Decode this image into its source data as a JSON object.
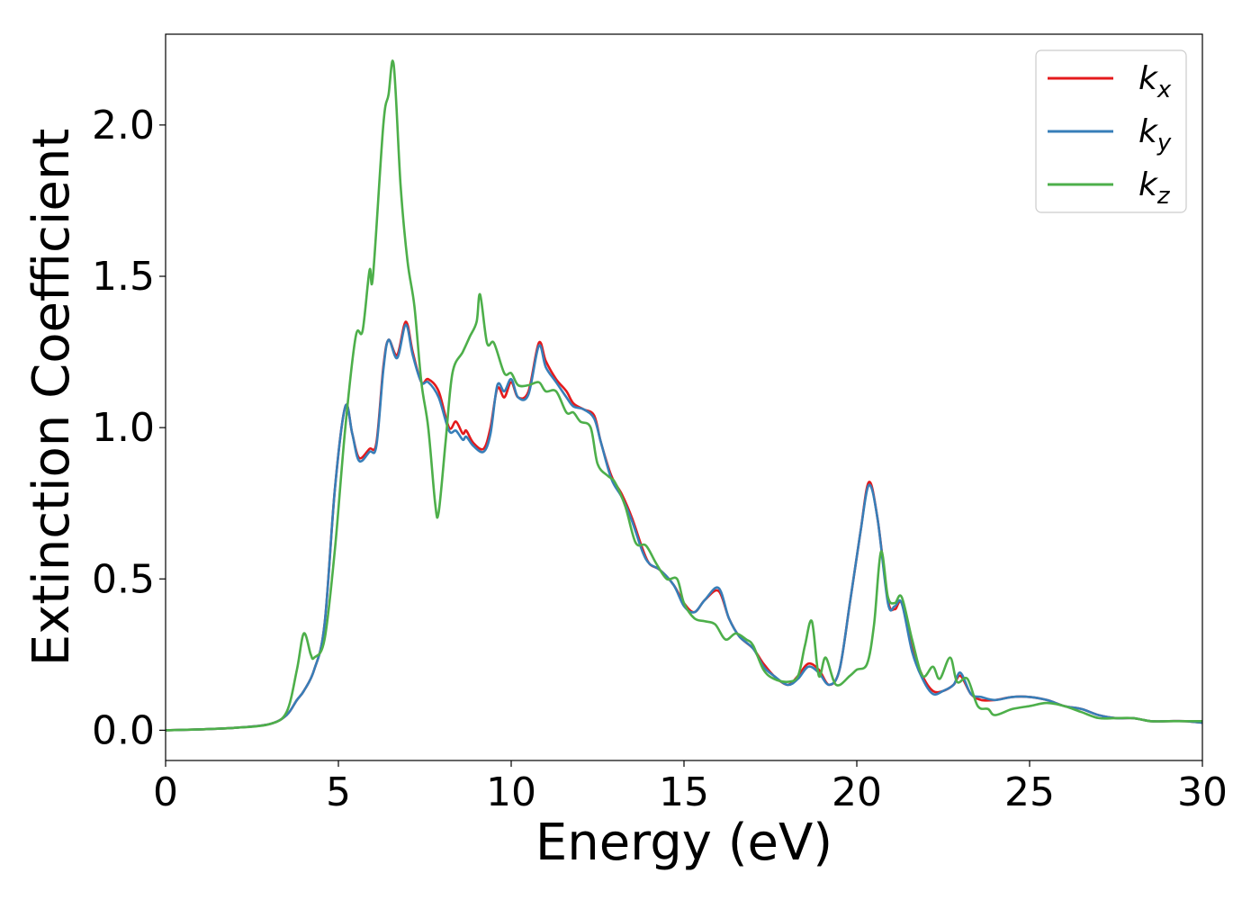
{
  "chart_data": {
    "type": "line",
    "title": "",
    "xlabel": "Energy (eV)",
    "ylabel": "Extinction Coefficient",
    "xlim": [
      0,
      30
    ],
    "ylim": [
      -0.1,
      2.3
    ],
    "x_ticks": [
      0,
      5,
      10,
      15,
      20,
      25,
      30
    ],
    "x_tick_labels": [
      "0",
      "5",
      "10",
      "15",
      "20",
      "25",
      "30"
    ],
    "y_ticks": [
      0.0,
      0.5,
      1.0,
      1.5,
      2.0
    ],
    "y_tick_labels": [
      "0.0",
      "0.5",
      "1.0",
      "1.5",
      "2.0"
    ],
    "grid": false,
    "legend_position": "top-right",
    "series": [
      {
        "name": "k_x",
        "label_main": "k",
        "label_sub": "x",
        "color": "#e41a1c",
        "points": [
          [
            0,
            0.0
          ],
          [
            1,
            0.003
          ],
          [
            2,
            0.008
          ],
          [
            3,
            0.02
          ],
          [
            3.5,
            0.05
          ],
          [
            3.8,
            0.1
          ],
          [
            4.0,
            0.13
          ],
          [
            4.3,
            0.2
          ],
          [
            4.6,
            0.35
          ],
          [
            4.9,
            0.8
          ],
          [
            5.2,
            1.07
          ],
          [
            5.4,
            0.98
          ],
          [
            5.6,
            0.9
          ],
          [
            5.9,
            0.93
          ],
          [
            6.1,
            0.95
          ],
          [
            6.3,
            1.2
          ],
          [
            6.45,
            1.29
          ],
          [
            6.7,
            1.24
          ],
          [
            6.95,
            1.35
          ],
          [
            7.15,
            1.25
          ],
          [
            7.4,
            1.15
          ],
          [
            7.6,
            1.16
          ],
          [
            7.9,
            1.12
          ],
          [
            8.2,
            1.0
          ],
          [
            8.4,
            1.02
          ],
          [
            8.6,
            0.98
          ],
          [
            8.7,
            0.99
          ],
          [
            8.9,
            0.95
          ],
          [
            9.2,
            0.93
          ],
          [
            9.4,
            1.0
          ],
          [
            9.6,
            1.13
          ],
          [
            9.8,
            1.1
          ],
          [
            10.0,
            1.15
          ],
          [
            10.2,
            1.1
          ],
          [
            10.5,
            1.12
          ],
          [
            10.8,
            1.28
          ],
          [
            11.0,
            1.22
          ],
          [
            11.3,
            1.16
          ],
          [
            11.6,
            1.12
          ],
          [
            11.8,
            1.08
          ],
          [
            12.1,
            1.06
          ],
          [
            12.4,
            1.04
          ],
          [
            12.6,
            0.95
          ],
          [
            12.9,
            0.84
          ],
          [
            13.2,
            0.78
          ],
          [
            13.5,
            0.7
          ],
          [
            13.8,
            0.6
          ],
          [
            14.0,
            0.55
          ],
          [
            14.3,
            0.53
          ],
          [
            14.7,
            0.48
          ],
          [
            15.0,
            0.42
          ],
          [
            15.3,
            0.39
          ],
          [
            15.6,
            0.43
          ],
          [
            16.0,
            0.46
          ],
          [
            16.3,
            0.37
          ],
          [
            16.6,
            0.31
          ],
          [
            17.0,
            0.27
          ],
          [
            17.3,
            0.22
          ],
          [
            17.6,
            0.18
          ],
          [
            18.0,
            0.15
          ],
          [
            18.3,
            0.18
          ],
          [
            18.6,
            0.22
          ],
          [
            18.9,
            0.2
          ],
          [
            19.2,
            0.15
          ],
          [
            19.5,
            0.2
          ],
          [
            19.8,
            0.42
          ],
          [
            20.1,
            0.65
          ],
          [
            20.35,
            0.82
          ],
          [
            20.6,
            0.7
          ],
          [
            20.9,
            0.43
          ],
          [
            21.1,
            0.4
          ],
          [
            21.3,
            0.42
          ],
          [
            21.6,
            0.27
          ],
          [
            21.9,
            0.18
          ],
          [
            22.2,
            0.13
          ],
          [
            22.5,
            0.13
          ],
          [
            22.8,
            0.15
          ],
          [
            23.0,
            0.18
          ],
          [
            23.3,
            0.12
          ],
          [
            23.6,
            0.1
          ],
          [
            24.0,
            0.1
          ],
          [
            24.5,
            0.11
          ],
          [
            25.0,
            0.11
          ],
          [
            25.5,
            0.1
          ],
          [
            26.0,
            0.08
          ],
          [
            26.5,
            0.07
          ],
          [
            27.0,
            0.05
          ],
          [
            27.5,
            0.04
          ],
          [
            28.0,
            0.04
          ],
          [
            28.5,
            0.03
          ],
          [
            29.0,
            0.03
          ],
          [
            29.5,
            0.03
          ],
          [
            30.0,
            0.025
          ]
        ]
      },
      {
        "name": "k_y",
        "label_main": "k",
        "label_sub": "y",
        "color": "#377eb8",
        "points": [
          [
            0,
            0.0
          ],
          [
            1,
            0.003
          ],
          [
            2,
            0.008
          ],
          [
            3,
            0.02
          ],
          [
            3.5,
            0.05
          ],
          [
            3.8,
            0.1
          ],
          [
            4.0,
            0.13
          ],
          [
            4.3,
            0.2
          ],
          [
            4.6,
            0.35
          ],
          [
            4.9,
            0.8
          ],
          [
            5.2,
            1.07
          ],
          [
            5.4,
            0.98
          ],
          [
            5.6,
            0.89
          ],
          [
            5.9,
            0.92
          ],
          [
            6.1,
            0.94
          ],
          [
            6.3,
            1.19
          ],
          [
            6.45,
            1.29
          ],
          [
            6.7,
            1.23
          ],
          [
            6.95,
            1.34
          ],
          [
            7.15,
            1.24
          ],
          [
            7.4,
            1.15
          ],
          [
            7.6,
            1.15
          ],
          [
            7.9,
            1.1
          ],
          [
            8.2,
            0.99
          ],
          [
            8.4,
            0.99
          ],
          [
            8.6,
            0.96
          ],
          [
            8.7,
            0.97
          ],
          [
            8.9,
            0.94
          ],
          [
            9.2,
            0.92
          ],
          [
            9.4,
            0.98
          ],
          [
            9.6,
            1.14
          ],
          [
            9.8,
            1.12
          ],
          [
            10.0,
            1.16
          ],
          [
            10.2,
            1.1
          ],
          [
            10.5,
            1.11
          ],
          [
            10.8,
            1.27
          ],
          [
            11.0,
            1.2
          ],
          [
            11.3,
            1.15
          ],
          [
            11.6,
            1.1
          ],
          [
            11.8,
            1.07
          ],
          [
            12.1,
            1.06
          ],
          [
            12.4,
            1.03
          ],
          [
            12.6,
            0.95
          ],
          [
            12.9,
            0.83
          ],
          [
            13.2,
            0.77
          ],
          [
            13.5,
            0.69
          ],
          [
            13.8,
            0.59
          ],
          [
            14.0,
            0.55
          ],
          [
            14.3,
            0.53
          ],
          [
            14.7,
            0.48
          ],
          [
            15.0,
            0.41
          ],
          [
            15.3,
            0.39
          ],
          [
            15.6,
            0.43
          ],
          [
            16.0,
            0.47
          ],
          [
            16.3,
            0.37
          ],
          [
            16.6,
            0.31
          ],
          [
            17.0,
            0.27
          ],
          [
            17.3,
            0.21
          ],
          [
            17.6,
            0.18
          ],
          [
            18.0,
            0.15
          ],
          [
            18.3,
            0.17
          ],
          [
            18.6,
            0.21
          ],
          [
            18.9,
            0.19
          ],
          [
            19.2,
            0.15
          ],
          [
            19.5,
            0.2
          ],
          [
            19.8,
            0.42
          ],
          [
            20.1,
            0.65
          ],
          [
            20.35,
            0.81
          ],
          [
            20.6,
            0.7
          ],
          [
            20.9,
            0.42
          ],
          [
            21.1,
            0.41
          ],
          [
            21.3,
            0.42
          ],
          [
            21.6,
            0.26
          ],
          [
            21.9,
            0.17
          ],
          [
            22.2,
            0.12
          ],
          [
            22.5,
            0.13
          ],
          [
            22.8,
            0.15
          ],
          [
            23.0,
            0.19
          ],
          [
            23.3,
            0.12
          ],
          [
            23.6,
            0.11
          ],
          [
            24.0,
            0.1
          ],
          [
            24.5,
            0.11
          ],
          [
            25.0,
            0.11
          ],
          [
            25.5,
            0.1
          ],
          [
            26.0,
            0.08
          ],
          [
            26.5,
            0.07
          ],
          [
            27.0,
            0.05
          ],
          [
            27.5,
            0.04
          ],
          [
            28.0,
            0.04
          ],
          [
            28.5,
            0.03
          ],
          [
            29.0,
            0.03
          ],
          [
            29.5,
            0.03
          ],
          [
            30.0,
            0.025
          ]
        ]
      },
      {
        "name": "k_z",
        "label_main": "k",
        "label_sub": "z",
        "color": "#4daf4a",
        "points": [
          [
            0,
            0.0
          ],
          [
            1,
            0.003
          ],
          [
            2,
            0.008
          ],
          [
            3,
            0.02
          ],
          [
            3.5,
            0.06
          ],
          [
            3.8,
            0.2
          ],
          [
            4.0,
            0.32
          ],
          [
            4.2,
            0.25
          ],
          [
            4.3,
            0.24
          ],
          [
            4.6,
            0.3
          ],
          [
            4.9,
            0.6
          ],
          [
            5.2,
            1.0
          ],
          [
            5.5,
            1.3
          ],
          [
            5.7,
            1.32
          ],
          [
            5.9,
            1.52
          ],
          [
            6.0,
            1.5
          ],
          [
            6.3,
            2.0
          ],
          [
            6.45,
            2.1
          ],
          [
            6.6,
            2.2
          ],
          [
            6.8,
            1.8
          ],
          [
            7.0,
            1.55
          ],
          [
            7.2,
            1.4
          ],
          [
            7.4,
            1.15
          ],
          [
            7.6,
            1.0
          ],
          [
            7.8,
            0.75
          ],
          [
            7.9,
            0.72
          ],
          [
            8.1,
            0.95
          ],
          [
            8.3,
            1.18
          ],
          [
            8.6,
            1.25
          ],
          [
            8.8,
            1.3
          ],
          [
            9.0,
            1.35
          ],
          [
            9.1,
            1.44
          ],
          [
            9.3,
            1.28
          ],
          [
            9.5,
            1.28
          ],
          [
            9.8,
            1.18
          ],
          [
            10.0,
            1.18
          ],
          [
            10.2,
            1.14
          ],
          [
            10.5,
            1.14
          ],
          [
            10.8,
            1.15
          ],
          [
            11.0,
            1.12
          ],
          [
            11.3,
            1.12
          ],
          [
            11.6,
            1.05
          ],
          [
            11.8,
            1.05
          ],
          [
            12.0,
            1.02
          ],
          [
            12.3,
            1.0
          ],
          [
            12.5,
            0.88
          ],
          [
            12.8,
            0.84
          ],
          [
            13.0,
            0.82
          ],
          [
            13.3,
            0.74
          ],
          [
            13.6,
            0.62
          ],
          [
            13.9,
            0.61
          ],
          [
            14.2,
            0.55
          ],
          [
            14.5,
            0.5
          ],
          [
            14.8,
            0.5
          ],
          [
            15.0,
            0.42
          ],
          [
            15.3,
            0.37
          ],
          [
            15.6,
            0.36
          ],
          [
            15.9,
            0.35
          ],
          [
            16.2,
            0.3
          ],
          [
            16.5,
            0.32
          ],
          [
            16.8,
            0.3
          ],
          [
            17.0,
            0.28
          ],
          [
            17.3,
            0.2
          ],
          [
            17.6,
            0.17
          ],
          [
            18.0,
            0.16
          ],
          [
            18.3,
            0.18
          ],
          [
            18.5,
            0.28
          ],
          [
            18.7,
            0.36
          ],
          [
            18.9,
            0.18
          ],
          [
            19.1,
            0.24
          ],
          [
            19.4,
            0.15
          ],
          [
            19.8,
            0.18
          ],
          [
            20.0,
            0.2
          ],
          [
            20.3,
            0.22
          ],
          [
            20.5,
            0.35
          ],
          [
            20.7,
            0.59
          ],
          [
            20.9,
            0.44
          ],
          [
            21.1,
            0.42
          ],
          [
            21.3,
            0.44
          ],
          [
            21.6,
            0.3
          ],
          [
            21.9,
            0.18
          ],
          [
            22.2,
            0.21
          ],
          [
            22.4,
            0.17
          ],
          [
            22.7,
            0.24
          ],
          [
            22.9,
            0.16
          ],
          [
            23.2,
            0.17
          ],
          [
            23.5,
            0.08
          ],
          [
            23.8,
            0.07
          ],
          [
            24.0,
            0.05
          ],
          [
            24.5,
            0.07
          ],
          [
            25.0,
            0.08
          ],
          [
            25.5,
            0.09
          ],
          [
            26.0,
            0.08
          ],
          [
            26.5,
            0.06
          ],
          [
            27.0,
            0.04
          ],
          [
            27.5,
            0.04
          ],
          [
            28.0,
            0.04
          ],
          [
            28.5,
            0.03
          ],
          [
            29.0,
            0.03
          ],
          [
            29.5,
            0.03
          ],
          [
            30.0,
            0.03
          ]
        ]
      }
    ]
  }
}
